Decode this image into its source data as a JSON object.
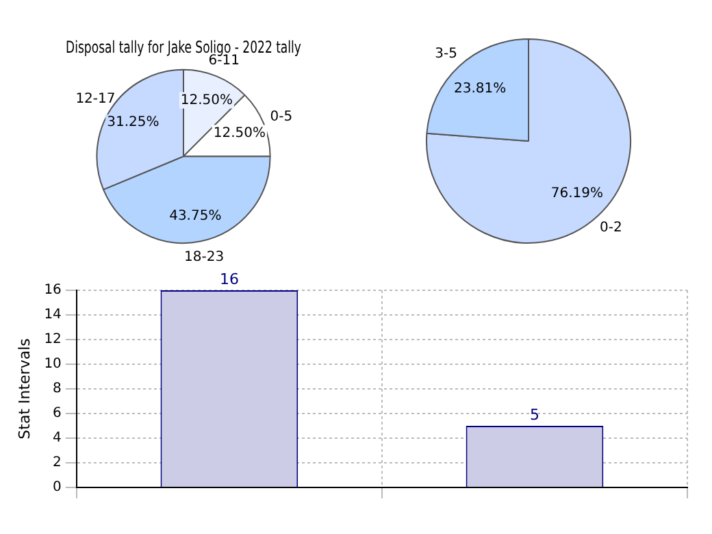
{
  "chart_data": [
    {
      "type": "pie",
      "title": "Disposal tally for Jake Soligo - 2022 tally",
      "categories": [
        "6-11",
        "0-5",
        "18-23",
        "12-17"
      ],
      "values": [
        12.5,
        12.5,
        43.75,
        31.25
      ],
      "colors": [
        "#e8f0ff",
        "#ffffff",
        "#b3d4ff",
        "#c6d9ff"
      ],
      "value_labels": [
        "12.50%",
        "12.50%",
        "43.75%",
        "31.25%"
      ]
    },
    {
      "type": "pie",
      "categories": [
        "0-2",
        "3-5"
      ],
      "values": [
        76.19,
        23.81
      ],
      "colors": [
        "#c6d9ff",
        "#b3d4ff"
      ],
      "value_labels": [
        "76.19%",
        "23.81%"
      ]
    },
    {
      "type": "bar",
      "categories": [
        null,
        null
      ],
      "values": [
        16,
        5
      ],
      "color": "#ccccE6",
      "ylabel": "Stat Intervals",
      "ylim": [
        0,
        16
      ],
      "yticks": [
        0,
        2,
        4,
        6,
        8,
        10,
        12,
        14,
        16
      ],
      "grid": true,
      "data_labels": true
    }
  ]
}
